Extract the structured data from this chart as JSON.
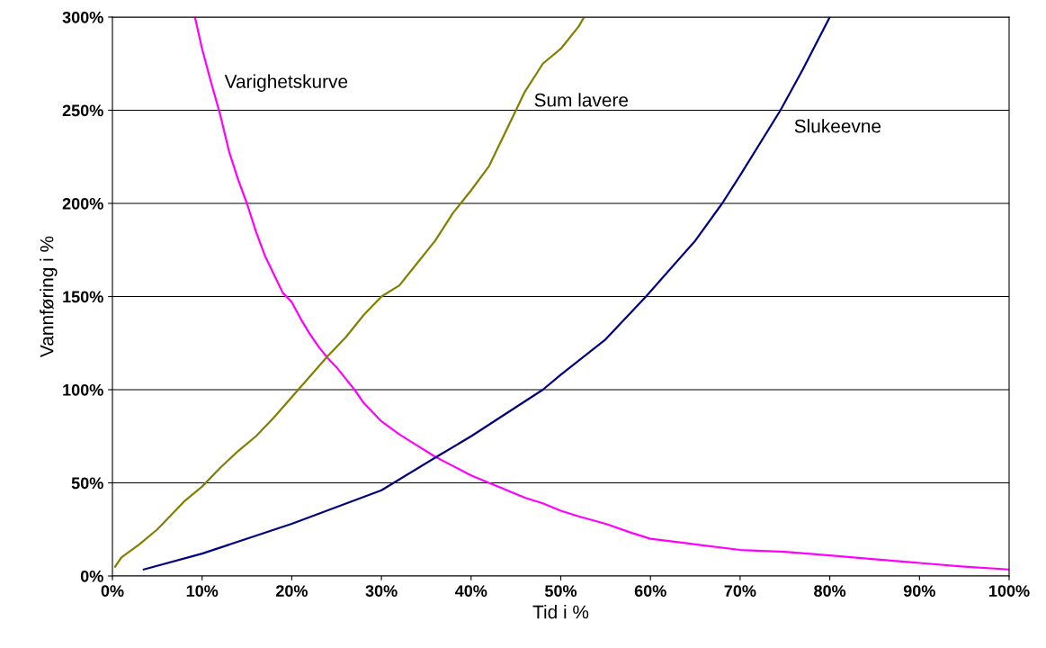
{
  "chart_data": {
    "type": "line",
    "xlabel": "Tid i %",
    "ylabel": "Vannføring i %",
    "xlim": [
      0,
      100
    ],
    "ylim": [
      0,
      300
    ],
    "xticks": [
      {
        "value": 0,
        "label": "0%"
      },
      {
        "value": 10,
        "label": "10%"
      },
      {
        "value": 20,
        "label": "20%"
      },
      {
        "value": 30,
        "label": "30%"
      },
      {
        "value": 40,
        "label": "40%"
      },
      {
        "value": 50,
        "label": "50%"
      },
      {
        "value": 60,
        "label": "60%"
      },
      {
        "value": 70,
        "label": "70%"
      },
      {
        "value": 80,
        "label": "80%"
      },
      {
        "value": 90,
        "label": "90%"
      },
      {
        "value": 100,
        "label": "100%"
      }
    ],
    "yticks": [
      {
        "value": 0,
        "label": "0%"
      },
      {
        "value": 50,
        "label": "50%"
      },
      {
        "value": 100,
        "label": "100%"
      },
      {
        "value": 150,
        "label": "150%"
      },
      {
        "value": 200,
        "label": "200%"
      },
      {
        "value": 250,
        "label": "250%"
      },
      {
        "value": 300,
        "label": "300%"
      }
    ],
    "grid": "y",
    "legend": false,
    "marker": "none",
    "line_style": "solid",
    "series": [
      {
        "name": "Varighetskurve",
        "color": "#ff00ff",
        "x": [
          9.2,
          10,
          11,
          12,
          13,
          14,
          15,
          16,
          17,
          18,
          19,
          20,
          21,
          22,
          23,
          24,
          25,
          26,
          27,
          28,
          29,
          30,
          32,
          34,
          36,
          38,
          40,
          42,
          44,
          46,
          48,
          50,
          52,
          55,
          58,
          60,
          65,
          70,
          75,
          80,
          85,
          90,
          95,
          100
        ],
        "values": [
          300,
          283,
          265,
          248,
          228,
          213,
          200,
          185,
          172,
          162,
          152,
          147,
          138,
          130,
          123,
          117,
          112,
          106,
          100,
          93,
          88,
          83,
          76,
          70,
          64,
          59,
          54,
          50,
          46,
          42,
          39,
          35,
          32,
          28,
          23,
          20,
          17,
          14,
          13,
          11,
          9,
          7,
          5,
          3.5
        ]
      },
      {
        "name": "Sum lavere",
        "color": "#808000",
        "x": [
          0.3,
          1,
          3,
          5,
          8,
          10,
          12,
          14,
          16,
          18,
          20,
          22,
          24,
          26,
          28,
          30,
          32,
          34,
          36,
          38,
          40,
          42,
          44,
          46,
          48,
          50,
          52,
          52.6
        ],
        "values": [
          5,
          10,
          17,
          25,
          40,
          48,
          58,
          67,
          75,
          85,
          96,
          107,
          118,
          128,
          140,
          150,
          156,
          168,
          180,
          195,
          207,
          220,
          240,
          260,
          275,
          283,
          295,
          300
        ]
      },
      {
        "name": "Slukeevne",
        "color": "#000080",
        "x": [
          3.5,
          10,
          20,
          30,
          36.5,
          40,
          48,
          50,
          55,
          59.5,
          65,
          68,
          70,
          74.5,
          77,
          80
        ],
        "values": [
          3.5,
          12,
          28,
          46,
          65,
          75,
          100,
          108,
          127,
          150,
          180,
          200,
          215,
          250,
          272,
          300
        ]
      }
    ]
  }
}
